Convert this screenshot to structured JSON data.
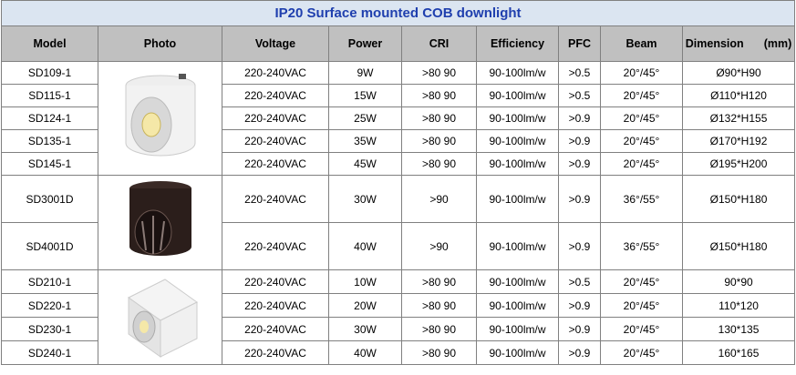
{
  "title": "IP20 Surface mounted COB downlight",
  "header": [
    "Model",
    "Photo",
    "Voltage",
    "Power",
    "CRI",
    "Efficiency",
    "PFC",
    "Beam",
    "Dimension"
  ],
  "dimension_unit": "(mm)",
  "rows": [
    [
      "SD109-1",
      "220-240VAC",
      "9W",
      ">80 90",
      "90-100lm/w",
      ">0.5",
      "20°/45°",
      "Ø90*H90"
    ],
    [
      "SD115-1",
      "220-240VAC",
      "15W",
      ">80 90",
      "90-100lm/w",
      ">0.5",
      "20°/45°",
      "Ø110*H120"
    ],
    [
      "SD124-1",
      "220-240VAC",
      "25W",
      ">80 90",
      "90-100lm/w",
      ">0.9",
      "20°/45°",
      "Ø132*H155"
    ],
    [
      "SD135-1",
      "220-240VAC",
      "35W",
      ">80 90",
      "90-100lm/w",
      ">0.9",
      "20°/45°",
      "Ø170*H192"
    ],
    [
      "SD145-1",
      "220-240VAC",
      "45W",
      ">80 90",
      "90-100lm/w",
      ">0.9",
      "20°/45°",
      "Ø195*H200"
    ],
    [
      "SD3001D",
      "220-240VAC",
      "30W",
      ">90",
      "90-100lm/w",
      ">0.9",
      "36°/55°",
      "Ø150*H180"
    ],
    [
      "SD4001D",
      "220-240VAC",
      "40W",
      ">90",
      "90-100lm/w",
      ">0.9",
      "36°/55°",
      "Ø150*H180"
    ],
    [
      "SD210-1",
      "220-240VAC",
      "10W",
      ">80 90",
      "90-100lm/w",
      ">0.5",
      "20°/45°",
      "90*90"
    ],
    [
      "SD220-1",
      "220-240VAC",
      "20W",
      ">80 90",
      "90-100lm/w",
      ">0.9",
      "20°/45°",
      "110*120"
    ],
    [
      "SD230-1",
      "220-240VAC",
      "30W",
      ">80 90",
      "90-100lm/w",
      ">0.9",
      "20°/45°",
      "130*135"
    ],
    [
      "SD240-1",
      "220-240VAC",
      "40W",
      ">80 90",
      "90-100lm/w",
      ">0.9",
      "20°/45°",
      "160*165"
    ]
  ]
}
